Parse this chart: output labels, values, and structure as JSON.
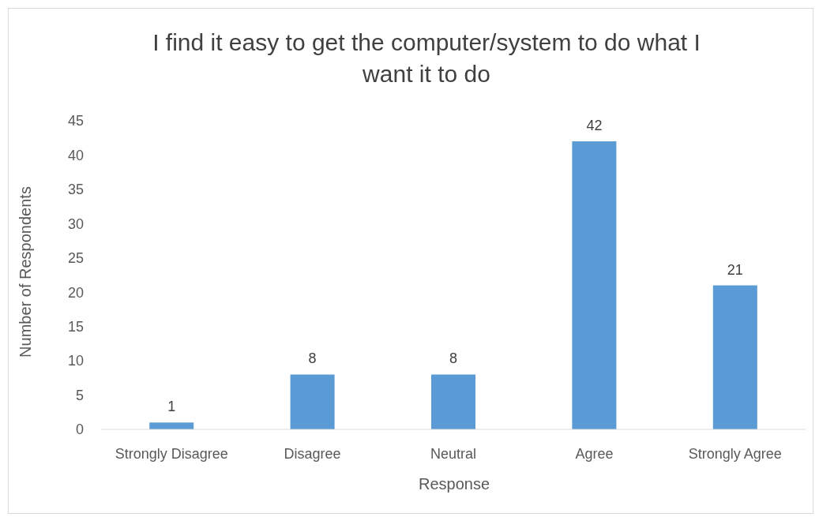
{
  "chart_data": {
    "type": "bar",
    "title": "I find it easy to get the computer/system to do what I want it to do",
    "xlabel": "Response",
    "ylabel": "Number of Respondents",
    "categories": [
      "Strongly Disagree",
      "Disagree",
      "Neutral",
      "Agree",
      "Strongly Agree"
    ],
    "values": [
      1,
      8,
      8,
      42,
      21
    ],
    "color": "#5b9bd5",
    "ylim": [
      0,
      45
    ],
    "yticks": [
      0,
      5,
      10,
      15,
      20,
      25,
      30,
      35,
      40,
      45
    ],
    "grid": false,
    "data_labels": true
  }
}
